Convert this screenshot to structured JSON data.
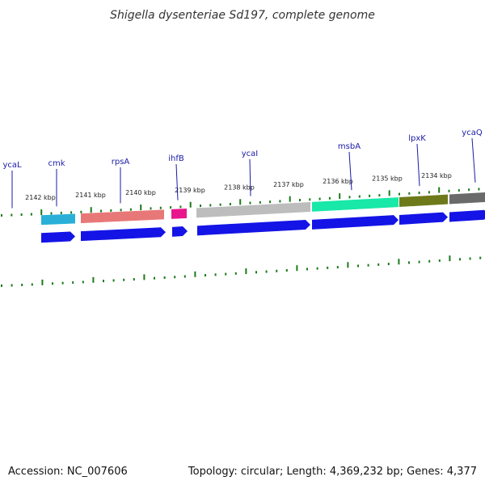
{
  "title": "Shigella dysenteriae Sd197, complete genome",
  "accession": "Accession: NC_007606",
  "summary": "Topology: circular; Length: 4,369,232 bp; Genes: 4,377",
  "kbp_labels": [
    "2142 kbp",
    "2141 kbp",
    "2140 kbp",
    "2139 kbp",
    "2138 kbp",
    "2137 kbp",
    "2136 kbp",
    "2135 kbp",
    "2134 kbp"
  ],
  "genes": [
    {
      "label": "ycaL",
      "color": "#b8b06a"
    },
    {
      "label": "cmk",
      "color": "#2ab0d8"
    },
    {
      "label": "rpsA",
      "color": "#e87878"
    },
    {
      "label": "ihfB",
      "color": "#e8168c"
    },
    {
      "label": "ycaI",
      "color": "#bdbdbd"
    },
    {
      "label": "msbA",
      "color": "#18e8a8"
    },
    {
      "label": "lpxK",
      "color": "#6e7a1a"
    },
    {
      "label": "ycaQ",
      "color": "#6a6a6a"
    }
  ],
  "colors": {
    "cds": "#1414e6",
    "ticks": "#1a7a1a",
    "backbone": "#7a7a7a",
    "gene_label": "#1a1aa8"
  }
}
